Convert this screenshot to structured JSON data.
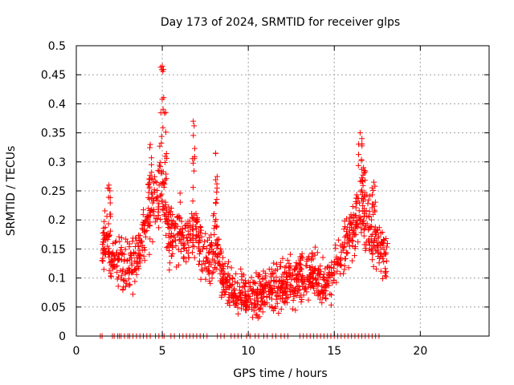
{
  "chart_data": {
    "type": "scatter",
    "title": "Day 173 of 2024, SRMTID for receiver glps",
    "xlabel": "GPS time / hours",
    "ylabel": "SRMTID / TECUs",
    "xlim": [
      0,
      24
    ],
    "ylim": [
      0,
      0.5
    ],
    "xticks": [
      0,
      5,
      10,
      15,
      20
    ],
    "xtick_labels": [
      "0",
      "5",
      "10",
      "15",
      "20"
    ],
    "yticks": [
      0,
      0.05,
      0.1,
      0.15,
      0.2,
      0.25,
      0.3,
      0.35,
      0.4,
      0.45,
      0.5
    ],
    "ytick_labels": [
      "0",
      "0.05",
      "0.1",
      "0.15",
      "0.2",
      "0.25",
      "0.3",
      "0.35",
      "0.4",
      "0.45",
      "0.5"
    ],
    "grid": true,
    "marker": "+",
    "color": "#ff0000",
    "series": [
      {
        "name": "SRMTID",
        "note": "approximate profile of the dense scatter; points generated around these envelope values",
        "profile_x": [
          1.5,
          1.8,
          2.0,
          2.3,
          2.6,
          3.0,
          3.4,
          3.8,
          4.2,
          4.6,
          5.0,
          5.3,
          5.7,
          6.1,
          6.5,
          6.9,
          7.3,
          7.7,
          8.1,
          8.5,
          9.0,
          9.5,
          10.0,
          10.5,
          11.0,
          11.5,
          12.0,
          12.5,
          13.0,
          13.5,
          14.0,
          14.5,
          15.0,
          15.4,
          15.8,
          16.2,
          16.6,
          17.0,
          17.4,
          17.8,
          18.1
        ],
        "profile_y": [
          0.14,
          0.18,
          0.12,
          0.13,
          0.12,
          0.13,
          0.12,
          0.17,
          0.21,
          0.23,
          0.27,
          0.19,
          0.17,
          0.18,
          0.15,
          0.2,
          0.15,
          0.13,
          0.16,
          0.1,
          0.08,
          0.07,
          0.07,
          0.07,
          0.08,
          0.08,
          0.09,
          0.09,
          0.1,
          0.11,
          0.1,
          0.09,
          0.11,
          0.15,
          0.16,
          0.2,
          0.22,
          0.19,
          0.17,
          0.15,
          0.14
        ],
        "peaks": [
          {
            "x": 1.9,
            "y": 0.26
          },
          {
            "x": 4.3,
            "y": 0.33
          },
          {
            "x": 5.0,
            "y": 0.465
          },
          {
            "x": 5.2,
            "y": 0.385
          },
          {
            "x": 6.8,
            "y": 0.37
          },
          {
            "x": 8.1,
            "y": 0.315
          },
          {
            "x": 16.5,
            "y": 0.35
          },
          {
            "x": 16.7,
            "y": 0.29
          },
          {
            "x": 17.3,
            "y": 0.265
          }
        ],
        "zero_points_x": [
          1.4,
          1.5,
          2.1,
          2.2,
          2.4,
          2.5,
          2.6,
          2.8,
          3.0,
          3.1,
          3.3,
          3.5,
          3.7,
          3.9,
          4.1,
          4.3,
          4.6,
          4.8,
          5.0,
          5.1,
          5.5,
          5.7,
          6.0,
          6.2,
          6.4,
          6.6,
          6.8,
          7.0,
          7.2,
          7.4,
          7.6,
          8.2,
          8.4,
          8.6,
          9.0,
          9.2,
          9.4,
          9.6,
          9.9,
          10.1,
          10.4,
          10.6,
          10.9,
          11.1,
          11.4,
          11.6,
          11.9,
          12.1,
          12.3,
          13.0,
          13.2,
          13.4,
          13.6,
          13.8,
          14.0,
          14.2,
          14.4,
          14.6,
          14.8,
          15.0,
          15.2,
          15.4,
          15.6,
          15.8,
          16.0,
          16.2,
          16.4,
          16.6,
          16.8,
          17.0,
          17.2,
          17.4,
          17.6
        ]
      }
    ]
  }
}
